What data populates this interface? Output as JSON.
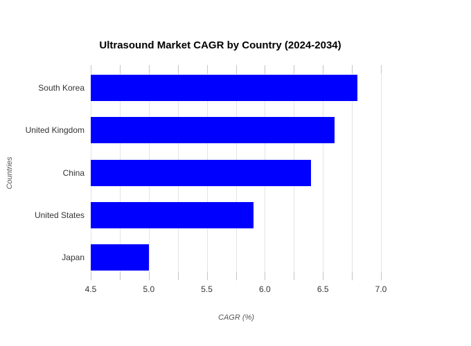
{
  "chart_data": {
    "type": "bar",
    "orientation": "horizontal",
    "title": "Ultrasound Market CAGR by Country (2024-2034)",
    "xlabel": "CAGR (%)",
    "ylabel": "Countries",
    "categories": [
      "South Korea",
      "United Kingdom",
      "China",
      "United States",
      "Japan"
    ],
    "values": [
      6.8,
      6.6,
      6.4,
      5.9,
      5.0
    ],
    "xlim": [
      4.5,
      7.0
    ],
    "xticks": [
      4.5,
      5.0,
      5.5,
      6.0,
      6.5,
      7.0
    ],
    "xtick_labels": [
      "4.5",
      "5.0",
      "5.5",
      "6.0",
      "6.5",
      "7.0"
    ],
    "minor_tick_step": 0.25,
    "grid": true,
    "legend": "none",
    "colors": {
      "bar": "#0000ff",
      "gridline": "#e3e3e3",
      "tick": "#c4c4c4",
      "tick_label": "#333333",
      "axis_title": "#555555",
      "title": "#000000",
      "background": "#ffffff"
    }
  }
}
